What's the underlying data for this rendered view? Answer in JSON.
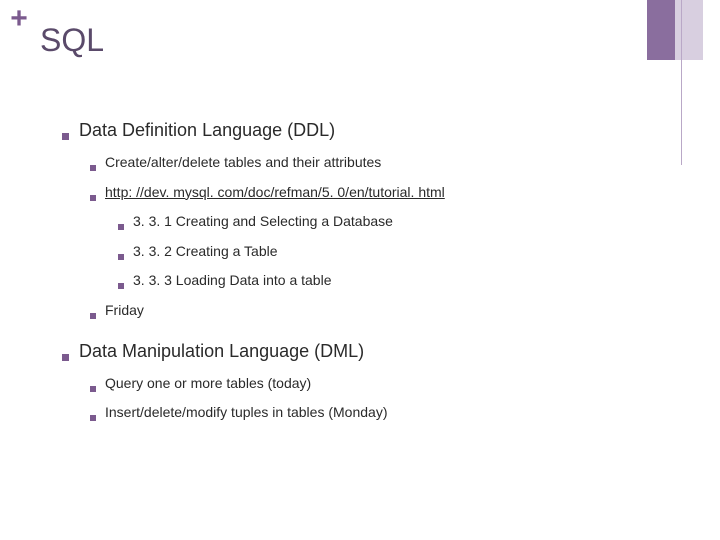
{
  "colors": {
    "accent": "#7b5a8e",
    "accent_light": "#d8cfe0",
    "line": "#b9a8c7",
    "title": "#5a4a6a",
    "text": "#2a2a2a",
    "background": "#ffffff"
  },
  "plus_glyph": "+",
  "title": "SQL",
  "outline": {
    "ddl": {
      "heading": "Data Definition Language (DDL)",
      "items": {
        "create": "Create/alter/delete tables and their attributes",
        "link": "http: //dev. mysql. com/doc/refman/5. 0/en/tutorial. html",
        "sub": {
          "a": "3. 3. 1 Creating and Selecting a Database",
          "b": "3. 3. 2 Creating a Table",
          "c": "3. 3. 3 Loading Data into a table"
        },
        "friday": "Friday"
      }
    },
    "dml": {
      "heading": "Data Manipulation Language (DML)",
      "items": {
        "query": "Query one or more tables (today)",
        "insert": "Insert/delete/modify tuples in tables (Monday)"
      }
    }
  }
}
